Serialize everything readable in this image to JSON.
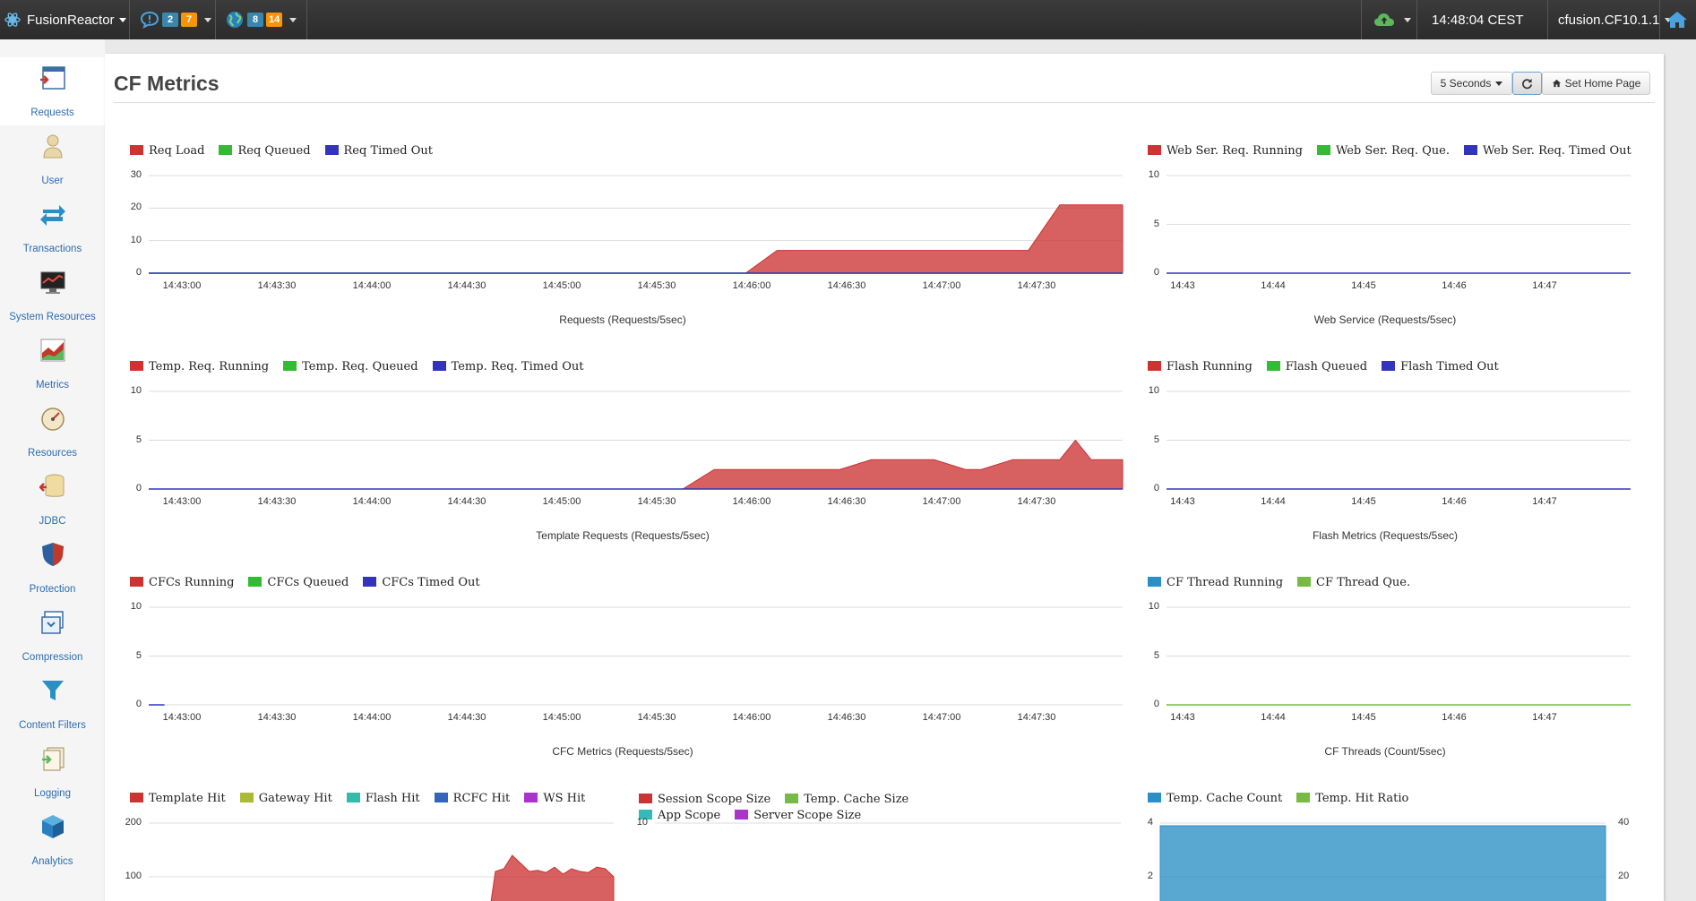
{
  "topbar": {
    "brand": "FusionReactor",
    "notifications_a": "2",
    "notifications_b": "7",
    "network_a": "8",
    "network_b": "14",
    "clock": "14:48:04 CEST",
    "instance": "cfusion.CF10.1.1"
  },
  "sidebar": {
    "items": [
      {
        "label": "Requests"
      },
      {
        "label": "User"
      },
      {
        "label": "Transactions"
      },
      {
        "label": "System Resources"
      },
      {
        "label": "Metrics"
      },
      {
        "label": "Resources"
      },
      {
        "label": "JDBC"
      },
      {
        "label": "Protection"
      },
      {
        "label": "Compression"
      },
      {
        "label": "Content Filters"
      },
      {
        "label": "Logging"
      },
      {
        "label": "Analytics"
      }
    ]
  },
  "page": {
    "title": "CF Metrics",
    "refresh_interval": "5 Seconds",
    "set_home_label": "Set Home Page"
  },
  "colors": {
    "red": "#cc3333",
    "green": "#33bb33",
    "blue": "#3333bb",
    "olive": "#aabb33",
    "teal": "#33bbaa",
    "rblue": "#3366bb",
    "purple": "#aa33cc",
    "lgreen": "#77bb44",
    "cyan": "#33bbbb",
    "skyblue": "#2a8fc5"
  },
  "chart_data": [
    {
      "type": "area",
      "title": "Requests (Requests/5sec)",
      "legend": [
        "Req Load",
        "Req Queued",
        "Req Timed Out"
      ],
      "yticks": [
        "0",
        "10",
        "20",
        "30"
      ],
      "ylim": [
        0,
        30
      ],
      "xticks": [
        "14:43:00",
        "14:43:30",
        "14:44:00",
        "14:44:30",
        "14:45:00",
        "14:45:30",
        "14:46:00",
        "14:46:30",
        "14:47:00",
        "14:47:30"
      ],
      "series": [
        {
          "name": "Req Load",
          "x": [
            0,
            38,
            40,
            42,
            56,
            58,
            62
          ],
          "y": [
            0,
            0,
            7,
            7,
            7,
            21,
            21
          ]
        },
        {
          "name": "Req Queued",
          "x": [
            0,
            62
          ],
          "y": [
            0,
            0
          ]
        },
        {
          "name": "Req Timed Out",
          "x": [
            0,
            62
          ],
          "y": [
            0,
            0
          ]
        }
      ]
    },
    {
      "type": "line",
      "title": "Web Service (Requests/5sec)",
      "legend": [
        "Web Ser. Req. Running",
        "Web Ser. Req. Que.",
        "Web Ser. Req. Timed Out"
      ],
      "yticks": [
        "0",
        "5",
        "10"
      ],
      "ylim": [
        0,
        10
      ],
      "xticks": [
        "14:43",
        "14:44",
        "14:45",
        "14:46",
        "14:47"
      ],
      "series": [
        {
          "name": "Web Ser. Req. Timed Out",
          "x": [
            0,
            1
          ],
          "y": [
            0,
            0
          ]
        }
      ]
    },
    {
      "type": "area",
      "title": "Template Requests (Requests/5sec)",
      "legend": [
        "Temp. Req. Running",
        "Temp. Req. Queued",
        "Temp. Req. Timed Out"
      ],
      "yticks": [
        "0",
        "5",
        "10"
      ],
      "ylim": [
        0,
        10
      ],
      "xticks": [
        "14:43:00",
        "14:43:30",
        "14:44:00",
        "14:44:30",
        "14:45:00",
        "14:45:30",
        "14:46:00",
        "14:46:30",
        "14:47:00",
        "14:47:30"
      ],
      "series": [
        {
          "name": "Temp. Req. Running",
          "x": [
            0,
            34,
            36,
            44,
            46,
            48,
            50,
            52,
            53,
            55,
            56,
            58,
            59,
            60,
            62
          ],
          "y": [
            0,
            0,
            2,
            2,
            3,
            3,
            3,
            2,
            2,
            3,
            3,
            3,
            5,
            3,
            3
          ]
        },
        {
          "name": "Temp. Req. Timed Out",
          "x": [
            0,
            62
          ],
          "y": [
            0,
            0
          ]
        }
      ]
    },
    {
      "type": "line",
      "title": "Flash Metrics (Requests/5sec)",
      "legend": [
        "Flash Running",
        "Flash Queued",
        "Flash Timed Out"
      ],
      "yticks": [
        "0",
        "5",
        "10"
      ],
      "ylim": [
        0,
        10
      ],
      "xticks": [
        "14:43",
        "14:44",
        "14:45",
        "14:46",
        "14:47"
      ],
      "series": [
        {
          "name": "Flash Timed Out",
          "x": [
            0,
            1
          ],
          "y": [
            0,
            0
          ]
        }
      ]
    },
    {
      "type": "line",
      "title": "CFC Metrics (Requests/5sec)",
      "legend": [
        "CFCs Running",
        "CFCs Queued",
        "CFCs Timed Out"
      ],
      "yticks": [
        "0",
        "5",
        "10"
      ],
      "ylim": [
        0,
        10
      ],
      "xticks": [
        "14:43:00",
        "14:43:30",
        "14:44:00",
        "14:44:30",
        "14:45:00",
        "14:45:30",
        "14:46:00",
        "14:46:30",
        "14:47:00",
        "14:47:30"
      ],
      "series": [
        {
          "name": "CFCs Timed Out",
          "x": [
            0,
            1
          ],
          "y": [
            0,
            0
          ]
        }
      ]
    },
    {
      "type": "line",
      "title": "CF Threads (Count/5sec)",
      "legend": [
        "CF Thread Running",
        "CF Thread Que."
      ],
      "yticks": [
        "0",
        "5",
        "10"
      ],
      "ylim": [
        0,
        10
      ],
      "xticks": [
        "14:43",
        "14:44",
        "14:45",
        "14:46",
        "14:47"
      ],
      "series": [
        {
          "name": "CF Thread Que.",
          "x": [
            0,
            1
          ],
          "y": [
            0,
            0
          ]
        }
      ]
    },
    {
      "type": "area",
      "title": "",
      "legend": [
        "Template Hit",
        "Gateway Hit",
        "Flash Hit",
        "RCFC Hit",
        "WS Hit"
      ],
      "yticks": [
        "100",
        "200"
      ],
      "ylim": [
        0,
        200
      ],
      "series": [
        {
          "name": "Template Hit",
          "x": [
            0,
            40,
            41,
            42,
            43,
            44,
            45,
            46,
            47,
            48,
            49,
            50,
            51,
            52,
            53,
            54,
            55
          ],
          "y": [
            0,
            0,
            110,
            115,
            140,
            125,
            110,
            112,
            108,
            118,
            105,
            115,
            110,
            108,
            118,
            115,
            100
          ]
        }
      ]
    },
    {
      "type": "line",
      "title": "",
      "legend": [
        "Session Scope Size",
        "Temp. Cache Size",
        "App Scope",
        "Server Scope Size"
      ],
      "yticks": [
        "10"
      ],
      "ylim": [
        0,
        10
      ],
      "series": []
    },
    {
      "type": "area",
      "title": "",
      "legend": [
        "Temp. Cache Count",
        "Temp. Hit Ratio"
      ],
      "yticks": [
        "2",
        "4"
      ],
      "ylim": [
        0,
        4
      ],
      "y2ticks": [
        "20",
        "40"
      ],
      "series": [
        {
          "name": "Temp. Cache Count",
          "x": [
            0,
            1
          ],
          "y": [
            3.9,
            3.9
          ]
        }
      ]
    }
  ]
}
